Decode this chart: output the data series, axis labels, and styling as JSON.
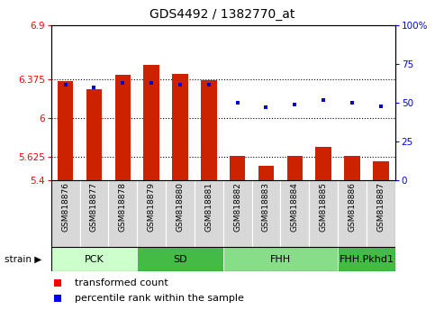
{
  "title": "GDS4492 / 1382770_at",
  "samples": [
    "GSM818876",
    "GSM818877",
    "GSM818878",
    "GSM818879",
    "GSM818880",
    "GSM818881",
    "GSM818882",
    "GSM818883",
    "GSM818884",
    "GSM818885",
    "GSM818886",
    "GSM818887"
  ],
  "red_values": [
    6.36,
    6.28,
    6.42,
    6.52,
    6.43,
    6.37,
    5.64,
    5.54,
    5.64,
    5.72,
    5.64,
    5.58
  ],
  "blue_values": [
    62,
    60,
    63,
    63,
    62,
    62,
    50,
    47,
    49,
    52,
    50,
    48
  ],
  "ymin": 5.4,
  "ymax": 6.9,
  "yticks": [
    5.4,
    5.625,
    6.0,
    6.375,
    6.9
  ],
  "ytick_labels": [
    "5.4",
    "5.625",
    "6",
    "6.375",
    "6.9"
  ],
  "right_yticks": [
    0,
    25,
    50,
    75,
    100
  ],
  "right_ytick_labels": [
    "0",
    "25",
    "50",
    "75",
    "100%"
  ],
  "dotted_lines": [
    5.625,
    6.0,
    6.375
  ],
  "bar_color": "#cc2200",
  "dot_color": "#0000cc",
  "bar_width": 0.55,
  "groups": [
    {
      "label": "PCK",
      "start": 0,
      "end": 2,
      "color": "#ccffcc"
    },
    {
      "label": "SD",
      "start": 3,
      "end": 5,
      "color": "#44bb44"
    },
    {
      "label": "FHH",
      "start": 6,
      "end": 9,
      "color": "#88dd88"
    },
    {
      "label": "FHH.Pkhd1",
      "start": 10,
      "end": 11,
      "color": "#44bb44"
    }
  ]
}
